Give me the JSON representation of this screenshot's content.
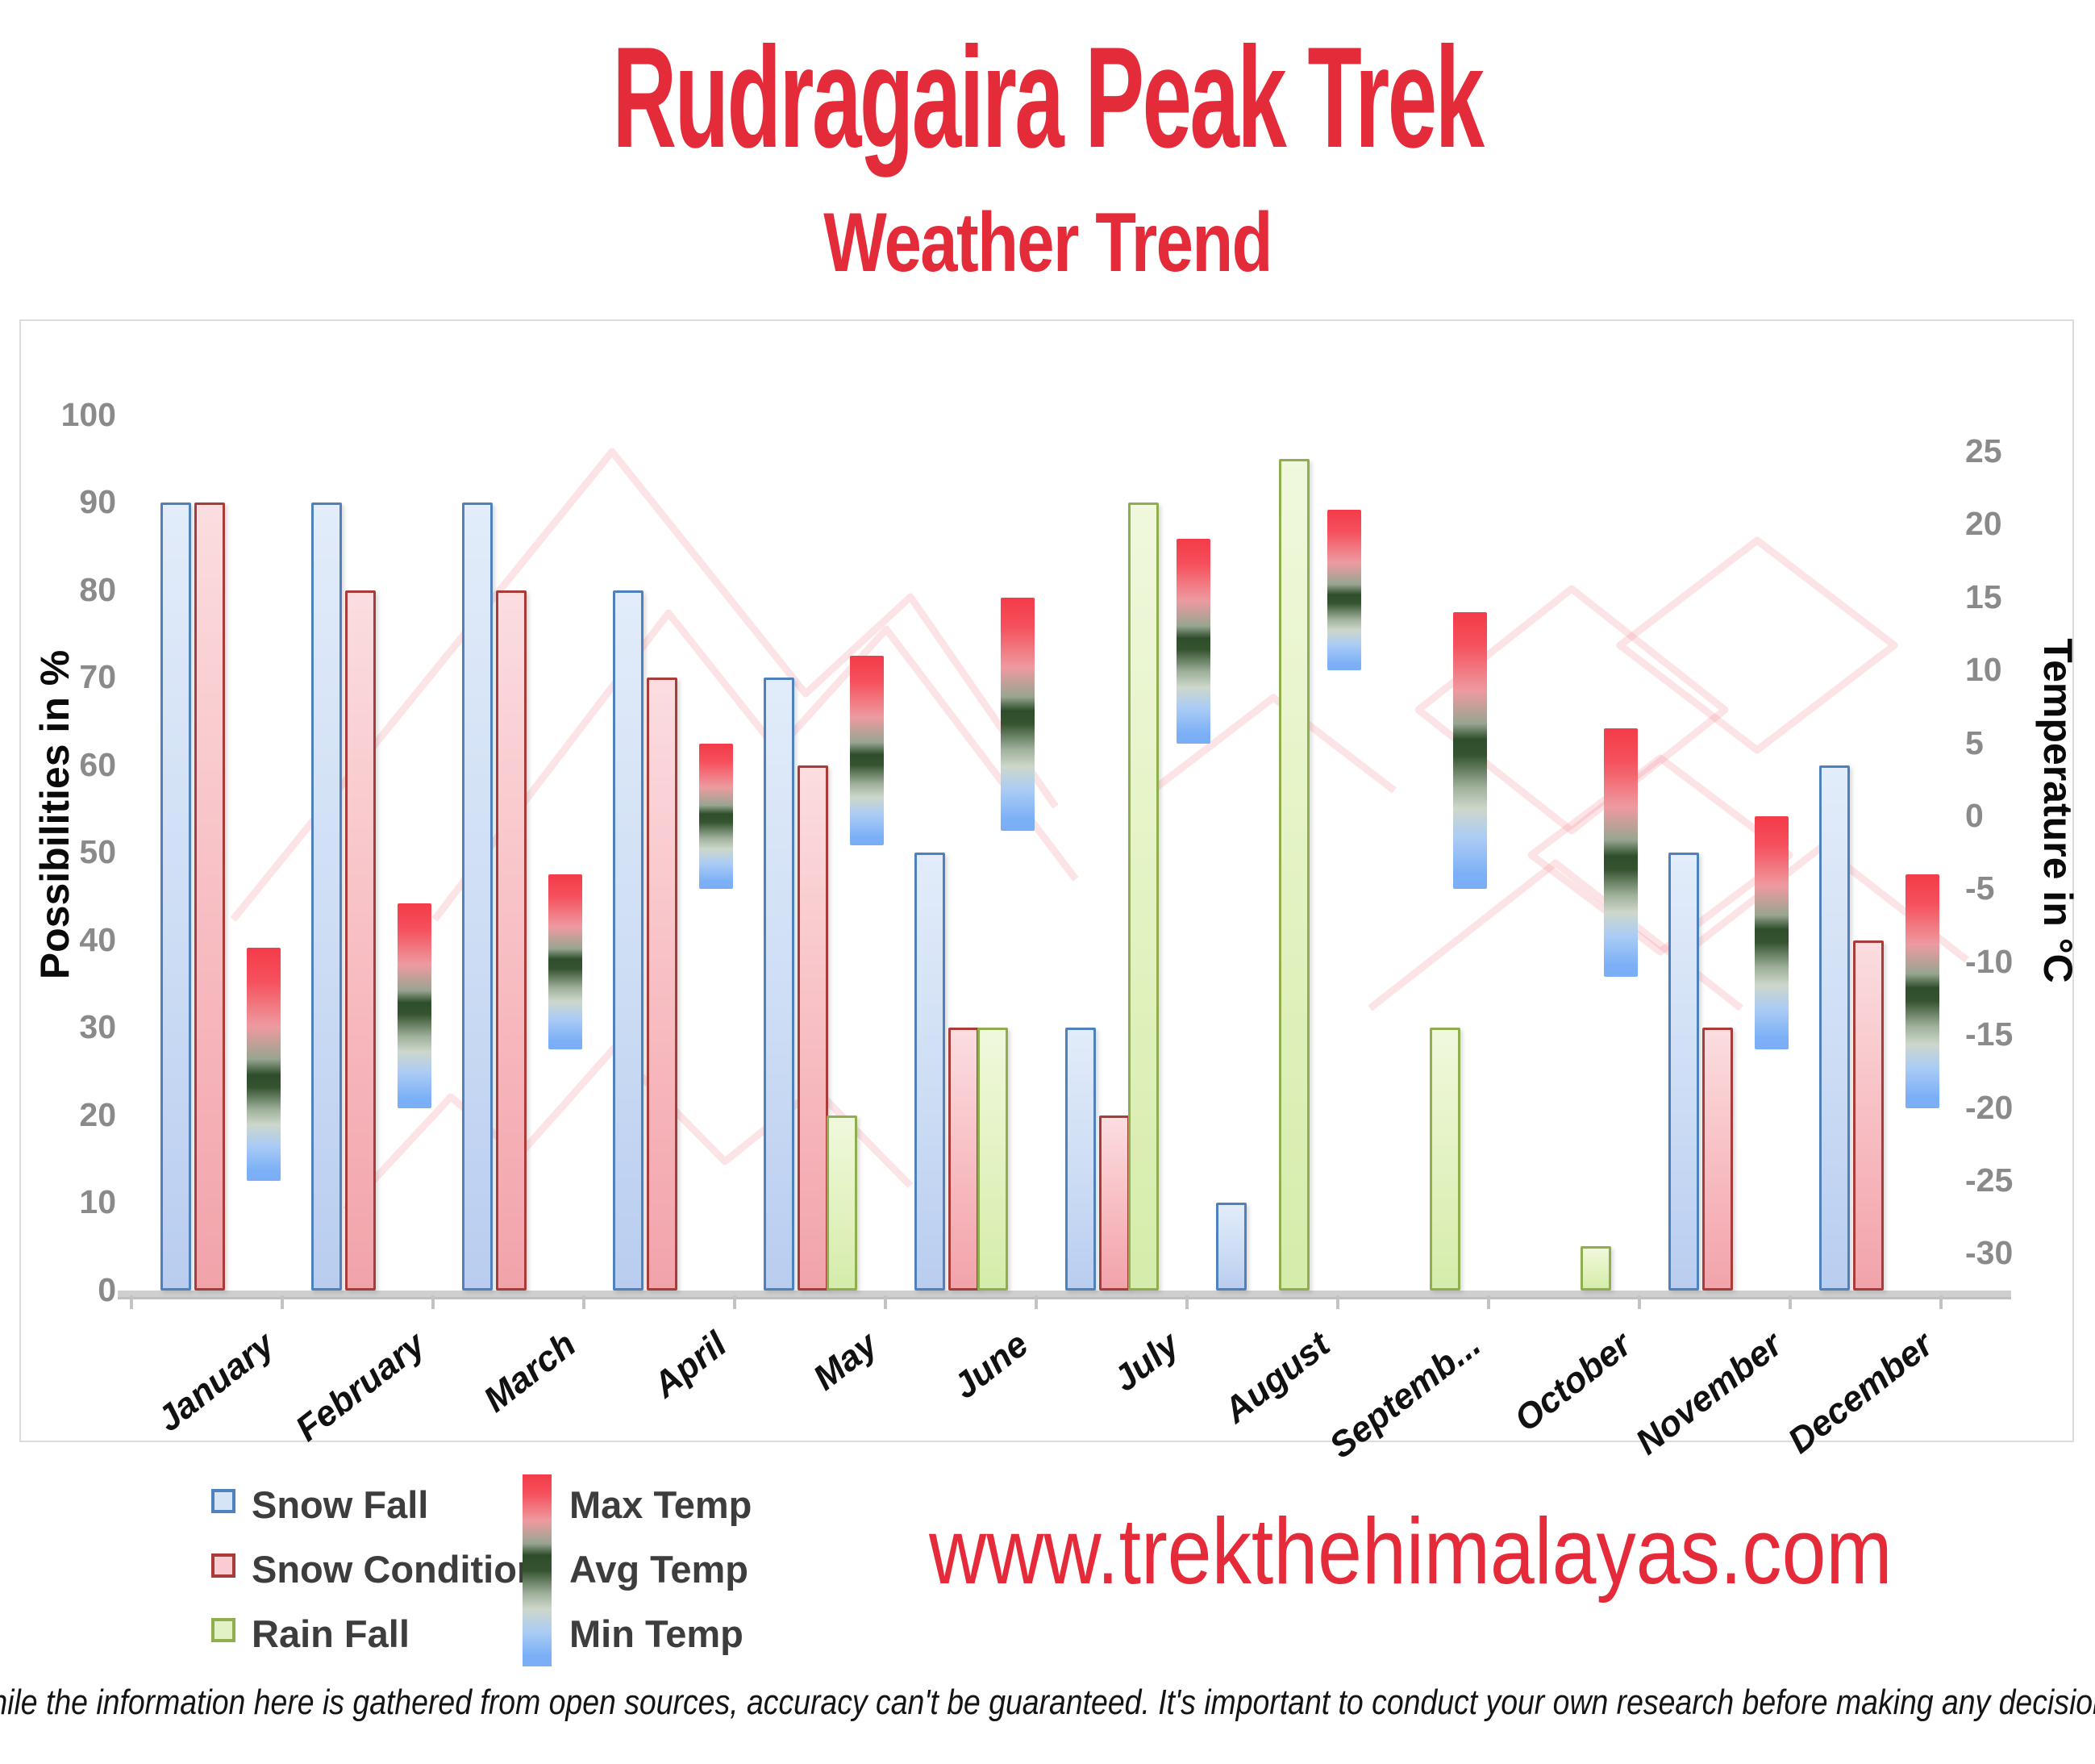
{
  "title": "Rudragaira Peak Trek",
  "subtitle": "Weather Trend",
  "website": "www.trekthehimalayas.com",
  "disclaimer": "While the information here is gathered from open sources, accuracy can't be guaranteed. It's important to conduct your own research before making any decisions.",
  "legend": {
    "snow_fall": "Snow Fall",
    "snow_condition": "Snow Condition",
    "rain_fall": "Rain Fall",
    "max_temp": "Max Temp",
    "avg_temp": "Avg Temp",
    "min_temp": "Min Temp"
  },
  "colors": {
    "accent_red": "#e32b3a",
    "snow_fill": "#cfe0f6",
    "snow_border": "#4f81bd",
    "snow_condition_fill": "#f6c4c9",
    "snow_condition_border": "#a93c39",
    "rain_fill": "#ddf0b8",
    "rain_border": "#8fae4e",
    "temp_max_red": "#f43b49",
    "temp_avg_green": "#2e4e2b",
    "temp_min_blue": "#7cb0f6",
    "axis_text": "#8a8a8a",
    "panel_border": "#dcdcdc"
  },
  "chart_data": {
    "type": "bar",
    "title": "Rudragaira Peak Trek — Weather Trend",
    "grid": false,
    "legend_position": "bottom-left",
    "left_axis": {
      "label": "Possibilities in %",
      "min": 0,
      "max": 100,
      "step": 10
    },
    "right_axis": {
      "label": "Temperature in °C",
      "min": -30,
      "max": 25,
      "step": 5
    },
    "categories": [
      "January",
      "February",
      "March",
      "April",
      "May",
      "June",
      "July",
      "August",
      "September",
      "October",
      "November",
      "December"
    ],
    "category_axis_labels": [
      "January",
      "February",
      "March",
      "April",
      "May",
      "June",
      "July",
      "August",
      "Septemb...",
      "October",
      "November",
      "December"
    ],
    "series": [
      {
        "name": "Snow Fall",
        "unit": "%",
        "axis": "left",
        "values": [
          90,
          90,
          90,
          80,
          70,
          50,
          30,
          10,
          0,
          0,
          50,
          60
        ]
      },
      {
        "name": "Snow Condition",
        "unit": "%",
        "axis": "left",
        "values": [
          90,
          80,
          80,
          70,
          60,
          30,
          20,
          0,
          0,
          0,
          30,
          40
        ]
      },
      {
        "name": "Rain Fall",
        "unit": "%",
        "axis": "left",
        "values": [
          0,
          0,
          0,
          0,
          20,
          30,
          90,
          95,
          30,
          5,
          0,
          0
        ]
      },
      {
        "name": "Max Temp",
        "unit": "°C",
        "axis": "right",
        "values": [
          -9,
          -6,
          -4,
          5,
          11,
          15,
          19,
          21,
          14,
          6,
          0,
          -4
        ]
      },
      {
        "name": "Avg Temp",
        "unit": "°C",
        "axis": "right",
        "values": [
          -18,
          -13,
          -10,
          0,
          4,
          7,
          12,
          15,
          5,
          -3,
          -8,
          -12
        ]
      },
      {
        "name": "Min Temp",
        "unit": "°C",
        "axis": "right",
        "values": [
          -25,
          -20,
          -16,
          -5,
          -2,
          -1,
          5,
          10,
          -5,
          -11,
          -16,
          -20
        ]
      }
    ]
  }
}
